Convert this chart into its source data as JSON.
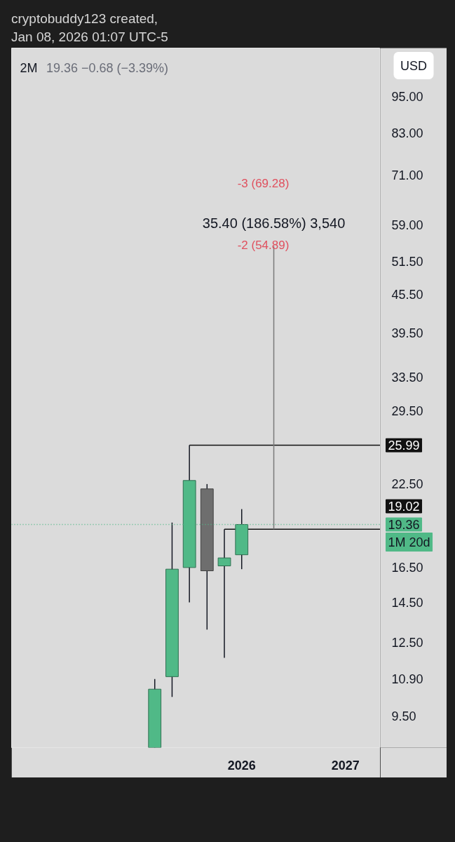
{
  "chart_data": {
    "type": "candlestick",
    "title": "2M",
    "subtitle": "19.36 −0.68 (−3.39%)",
    "ylabel": "USD",
    "x": [
      "2025-03",
      "2025-05",
      "2025-07",
      "2025-09",
      "2025-11",
      "2026-01"
    ],
    "ohlc": [
      [
        8.45,
        10.9,
        8.45,
        10.5
      ],
      [
        11.0,
        19.5,
        10.2,
        16.4
      ],
      [
        16.5,
        25.99,
        14.5,
        22.8
      ],
      [
        22.1,
        22.5,
        13.1,
        16.3
      ],
      [
        16.6,
        19.02,
        11.8,
        17.1
      ],
      [
        17.3,
        20.5,
        16.4,
        19.36
      ]
    ],
    "colors": [
      "#50b987",
      "#50b987",
      "#50b987",
      "#6e6e6e",
      "#50b987",
      "#50b987"
    ],
    "series": [
      {
        "type": "line",
        "color": "#111111",
        "x": [
          "2025-07",
          "2027-05-04"
        ],
        "values": [
          25.99,
          25.99
        ],
        "value_labels": [
          null,
          "25.99"
        ]
      },
      {
        "type": "line",
        "color": "#111111",
        "x": [
          "2025-11",
          "2027-05-04"
        ],
        "values": [
          19.02,
          19.02
        ],
        "value_labels": [
          null,
          "19.02"
        ]
      },
      {
        "type": "line",
        "color": "#7b7b7b",
        "x": [
          "2026-04-24",
          "2026-04-24"
        ],
        "values": [
          19.02,
          54.4
        ]
      }
    ],
    "ref_lines": [
      {
        "axis": "y",
        "value": 19.36,
        "label": "19.36",
        "color": "#50b987",
        "line_style": "dotted"
      }
    ],
    "annotations": [
      "cryptobuddy123 created,",
      "Jan 08, 2026 01:07 UTC-5",
      "1M 20d",
      "35.40 (186.58%) 3,540",
      "-3 (69.28)",
      "-2 (54.89)"
    ],
    "xlim": [
      "2023-10-14",
      "2027-05-04"
    ],
    "xticks": [
      "2026",
      "2027"
    ],
    "ylim": [
      8.45,
      113.7
    ],
    "yticks": [
      {
        "value": 9.5,
        "label": "9.50"
      },
      {
        "value": 10.9,
        "label": "10.90"
      },
      {
        "value": 12.5,
        "label": "12.50"
      },
      {
        "value": 14.5,
        "label": "14.50"
      },
      {
        "value": 16.5,
        "label": "16.50"
      },
      {
        "value": 22.5,
        "label": "22.50"
      },
      {
        "value": 29.5,
        "label": "29.50"
      },
      {
        "value": 33.5,
        "label": "33.50"
      },
      {
        "value": 39.5,
        "label": "39.50"
      },
      {
        "value": 45.5,
        "label": "45.50"
      },
      {
        "value": 51.5,
        "label": "51.50"
      },
      {
        "value": 59,
        "label": "59.00"
      },
      {
        "value": 71,
        "label": "71.00"
      },
      {
        "value": 83,
        "label": "83.00"
      },
      {
        "value": 95,
        "label": "95.00"
      }
    ],
    "log": true
  }
}
